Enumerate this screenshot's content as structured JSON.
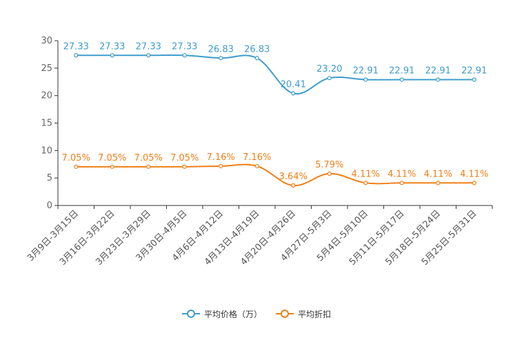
{
  "colors": {
    "price": "#3d9ccc",
    "discount": "#f07e14",
    "axis": "#333333"
  },
  "chart_data": {
    "type": "line",
    "categories": [
      "3月9日-3月15日",
      "3月16日-3月22日",
      "3月23日-3月29日",
      "3月30日-4月5日",
      "4月6日-4月12日",
      "4月13日-4月19日",
      "4月20日-4月26日",
      "4月27日-5月3日",
      "5月4日-5月10日",
      "5月11日-5月17日",
      "5月18日-5月24日",
      "5月25日-5月31日"
    ],
    "ylim": [
      0,
      30
    ],
    "yticks": [
      0,
      5,
      10,
      15,
      20,
      25,
      30
    ],
    "grid": false,
    "series": [
      {
        "name": "平均价格（万）",
        "values": [
          27.33,
          27.33,
          27.33,
          27.33,
          26.83,
          26.83,
          20.41,
          23.2,
          22.91,
          22.91,
          22.91,
          22.91
        ],
        "labels": [
          "27.33",
          "27.33",
          "27.33",
          "27.33",
          "26.83",
          "26.83",
          "20.41",
          "23.20",
          "22.91",
          "22.91",
          "22.91",
          "22.91"
        ]
      },
      {
        "name": "平均折扣",
        "values": [
          7.05,
          7.05,
          7.05,
          7.05,
          7.16,
          7.16,
          3.64,
          5.79,
          4.11,
          4.11,
          4.11,
          4.11
        ],
        "labels": [
          "7.05%",
          "7.05%",
          "7.05%",
          "7.05%",
          "7.16%",
          "7.16%",
          "3.64%",
          "5.79%",
          "4.11%",
          "4.11%",
          "4.11%",
          "4.11%"
        ]
      }
    ],
    "legend": {
      "position": "bottom-center"
    }
  }
}
